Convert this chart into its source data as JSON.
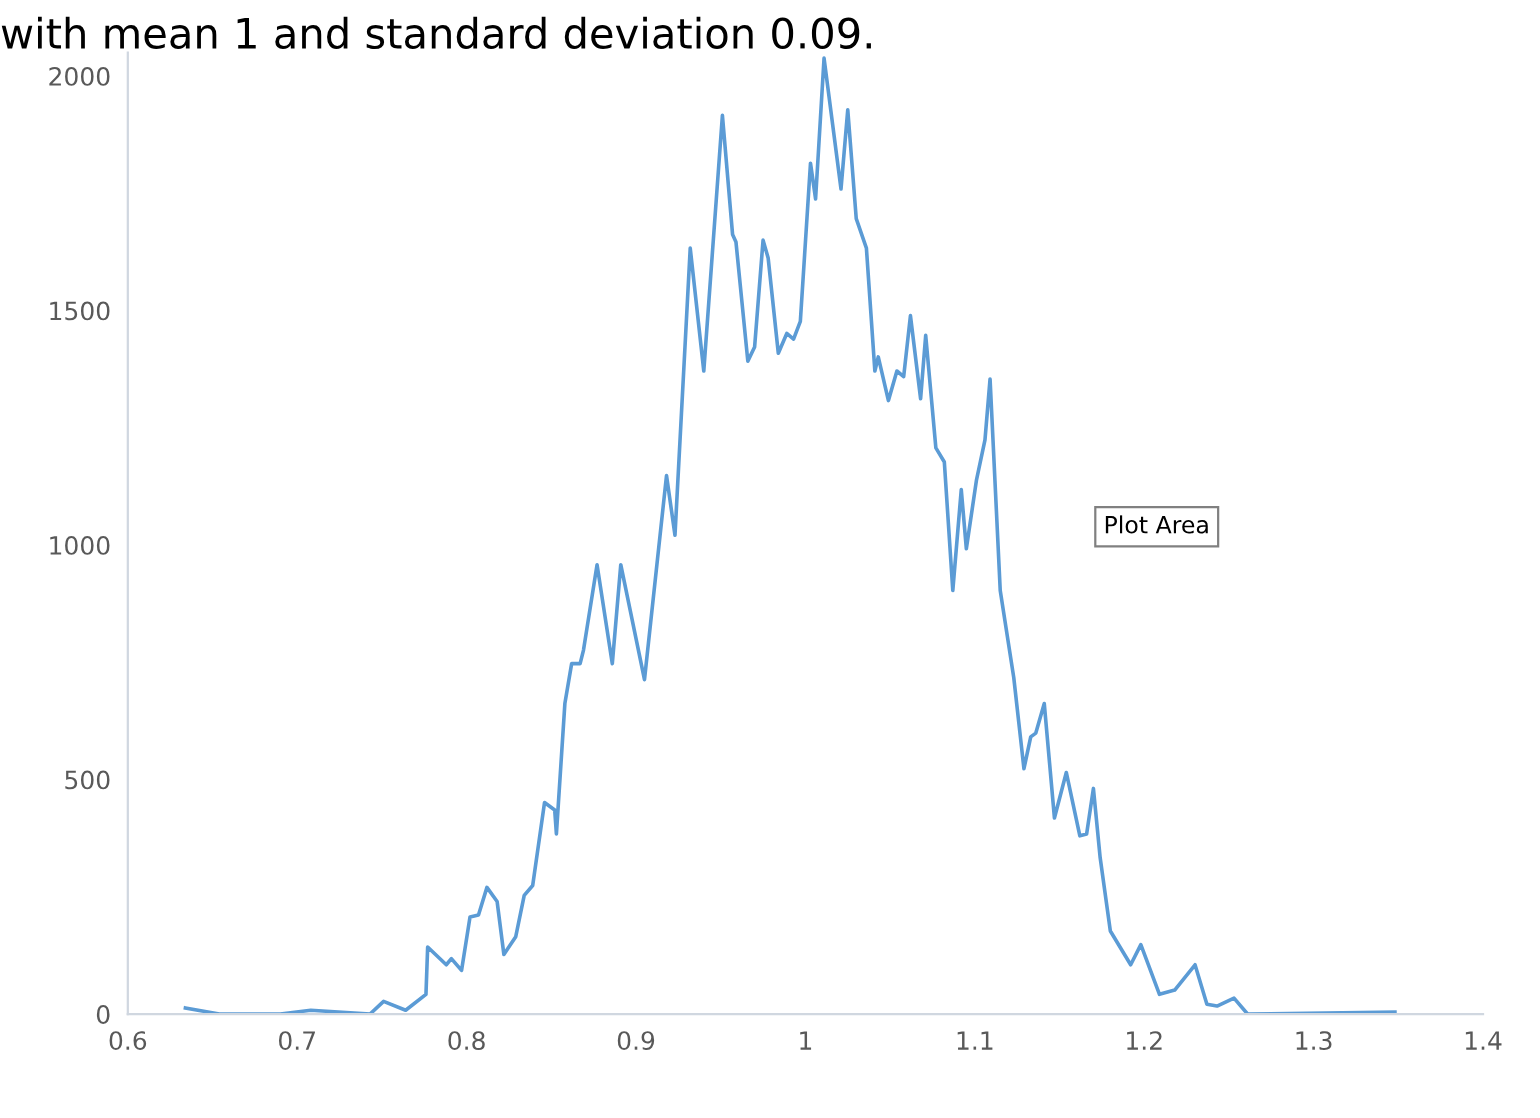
{
  "chart_data": {
    "type": "line",
    "title": "with mean 1 and standard deviation 0.09.",
    "x": [
      0.634,
      0.654,
      0.69,
      0.708,
      0.743,
      0.751,
      0.764,
      0.776,
      0.777,
      0.788,
      0.791,
      0.797,
      0.802,
      0.807,
      0.812,
      0.818,
      0.822,
      0.829,
      0.834,
      0.839,
      0.846,
      0.852,
      0.853,
      0.858,
      0.862,
      0.867,
      0.869,
      0.877,
      0.886,
      0.891,
      0.905,
      0.918,
      0.923,
      0.932,
      0.94,
      0.951,
      0.957,
      0.959,
      0.966,
      0.97,
      0.975,
      0.978,
      0.984,
      0.989,
      0.993,
      0.997,
      1.003,
      1.006,
      1.011,
      1.021,
      1.025,
      1.03,
      1.036,
      1.041,
      1.043,
      1.049,
      1.054,
      1.058,
      1.062,
      1.068,
      1.071,
      1.077,
      1.082,
      1.087,
      1.092,
      1.095,
      1.101,
      1.106,
      1.109,
      1.115,
      1.123,
      1.129,
      1.133,
      1.136,
      1.141,
      1.147,
      1.154,
      1.162,
      1.166,
      1.17,
      1.174,
      1.18,
      1.192,
      1.198,
      1.209,
      1.218,
      1.23,
      1.237,
      1.243,
      1.253,
      1.261,
      1.348
    ],
    "series": [
      {
        "color": "#5b9bd5",
        "values": [
          13,
          0,
          0,
          8,
          0,
          27,
          8,
          42,
          143,
          105,
          118,
          93,
          207,
          211,
          270,
          240,
          127,
          165,
          253,
          274,
          451,
          435,
          384,
          662,
          747,
          747,
          776,
          958,
          747,
          958,
          713,
          1148,
          1021,
          1633,
          1371,
          1916,
          1662,
          1646,
          1392,
          1422,
          1650,
          1612,
          1409,
          1451,
          1439,
          1477,
          1814,
          1738,
          2038,
          1759,
          1928,
          1696,
          1633,
          1371,
          1401,
          1308,
          1371,
          1359,
          1489,
          1312,
          1447,
          1207,
          1177,
          903,
          1118,
          992,
          1139,
          1224,
          1354,
          903,
          717,
          523,
          591,
          599,
          662,
          418,
          515,
          380,
          384,
          481,
          333,
          177,
          105,
          148,
          42,
          51,
          105,
          21,
          17,
          34,
          0,
          4
        ]
      }
    ],
    "xlim": [
      0.6,
      1.4
    ],
    "xticks": [
      0.6,
      0.7,
      0.8,
      0.9,
      1,
      1.1,
      1.2,
      1.3,
      1.4
    ],
    "ylim": [
      0,
      2050
    ],
    "yticks": [
      0,
      500,
      1000,
      1500,
      2000
    ],
    "grid": false,
    "legend": false,
    "marker": "none",
    "line_style": "solid",
    "annotations": [
      "Plot Area"
    ]
  }
}
